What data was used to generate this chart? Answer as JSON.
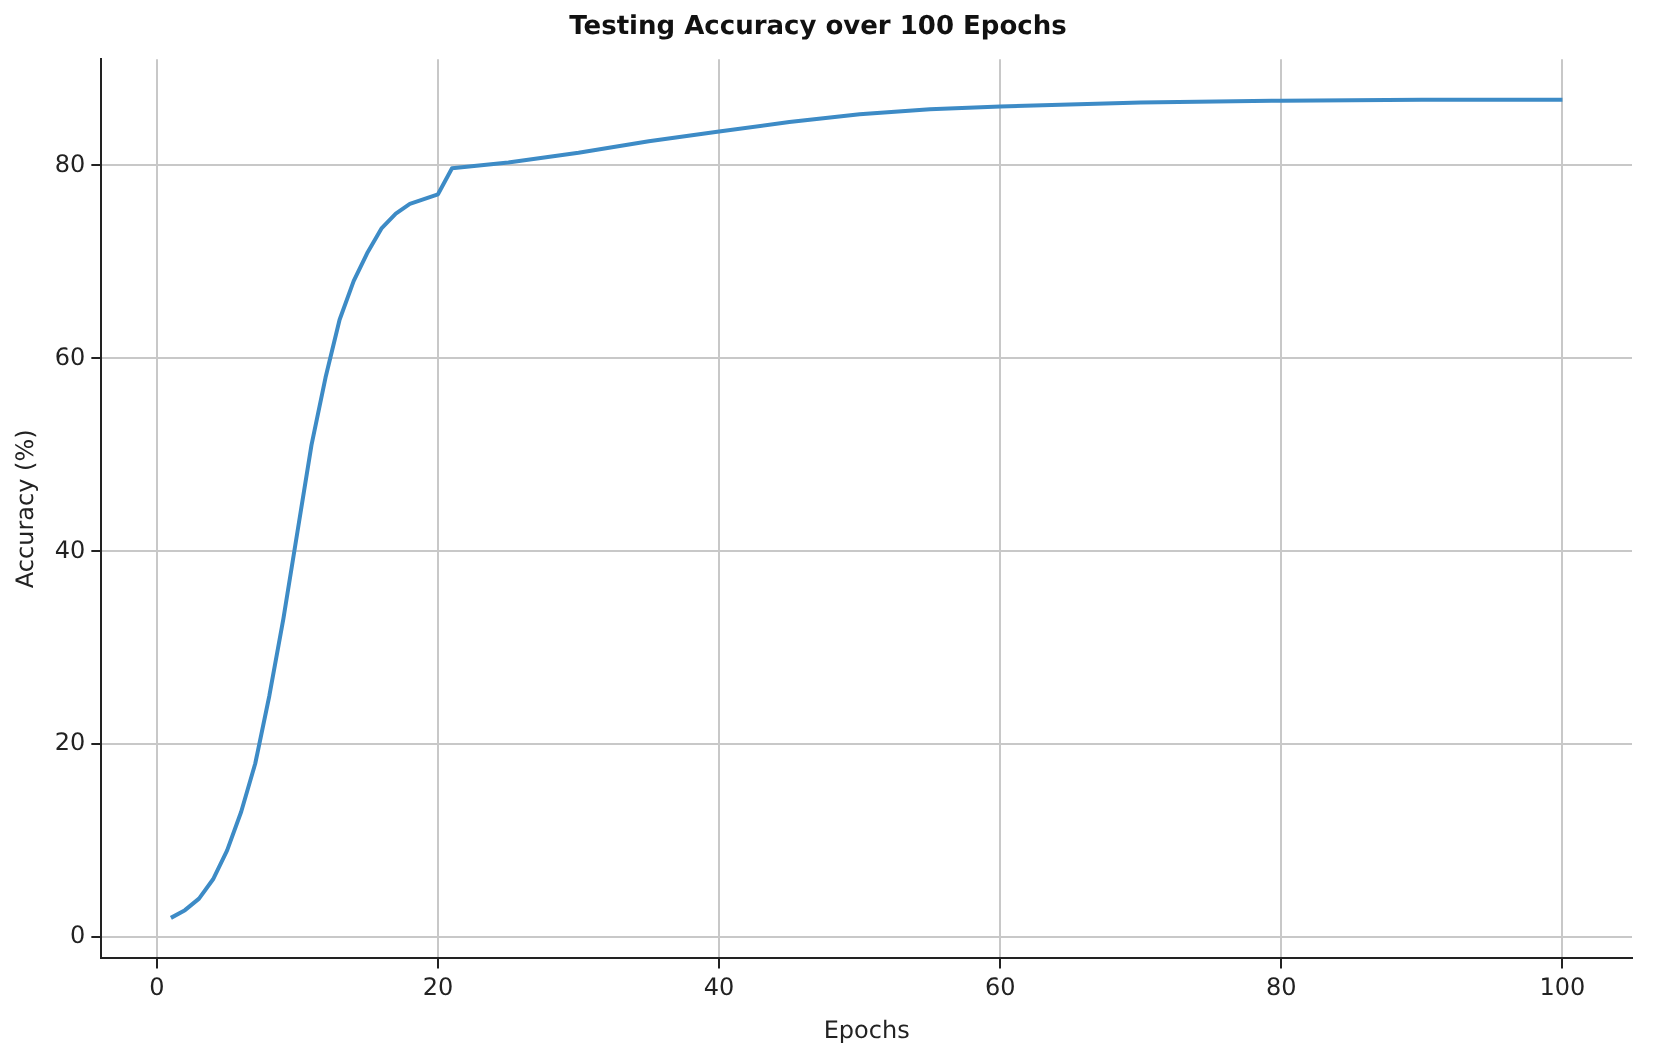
{
  "chart_data": {
    "type": "line",
    "title": "Testing Accuracy over 100 Epochs",
    "xlabel": "Epochs",
    "ylabel": "Accuracy (%)",
    "xlim": [
      -3.95,
      104.95
    ],
    "xticks": [
      0,
      20,
      40,
      60,
      80,
      100
    ],
    "ylim": [
      -2.2,
      91
    ],
    "yticks": [
      0,
      20,
      40,
      60,
      80
    ],
    "grid": true,
    "series": [
      {
        "color": "#3d8bc6",
        "x": [
          1,
          2,
          3,
          4,
          5,
          6,
          7,
          8,
          9,
          10,
          11,
          12,
          13,
          14,
          15,
          16,
          17,
          18,
          19,
          20,
          21,
          25,
          30,
          35,
          40,
          45,
          50,
          55,
          60,
          70,
          80,
          90,
          100
        ],
        "values": [
          2,
          2.8,
          4,
          6,
          9,
          13,
          18,
          25,
          33,
          42,
          51,
          58,
          64,
          68,
          71,
          73.5,
          75,
          76,
          76.5,
          77,
          79.7,
          80.3,
          81.3,
          82.5,
          83.5,
          84.5,
          85.3,
          85.8,
          86.1,
          86.5,
          86.7,
          86.8,
          86.8
        ]
      }
    ]
  }
}
